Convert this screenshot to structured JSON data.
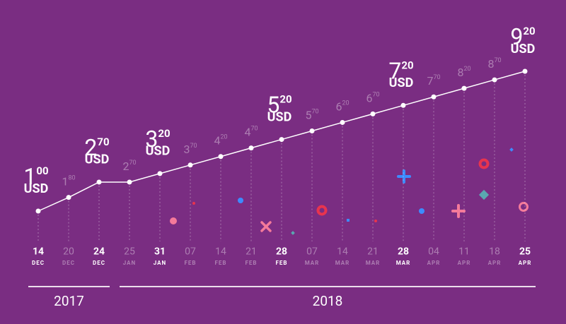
{
  "chart_data": {
    "type": "line",
    "x": [
      [
        "14",
        "DEC"
      ],
      [
        "20",
        "DEC"
      ],
      [
        "24",
        "DEC"
      ],
      [
        "25",
        "JAN"
      ],
      [
        "31",
        "JAN"
      ],
      [
        "07",
        "FEB"
      ],
      [
        "14",
        "FEB"
      ],
      [
        "21",
        "FEB"
      ],
      [
        "28",
        "FEB"
      ],
      [
        "07",
        "MAR"
      ],
      [
        "14",
        "MAR"
      ],
      [
        "21",
        "MAR"
      ],
      [
        "28",
        "MAR"
      ],
      [
        "04",
        "APR"
      ],
      [
        "11",
        "APR"
      ],
      [
        "18",
        "APR"
      ],
      [
        "25",
        "APR"
      ]
    ],
    "values": [
      1.0,
      1.8,
      2.7,
      2.7,
      3.2,
      3.7,
      4.2,
      4.7,
      5.2,
      5.7,
      6.2,
      6.7,
      7.2,
      7.7,
      8.2,
      8.7,
      9.2
    ],
    "value_labels": [
      [
        "1",
        "00"
      ],
      [
        "1",
        "80"
      ],
      [
        "2",
        "70"
      ],
      [
        "2",
        "70"
      ],
      [
        "3",
        "20"
      ],
      [
        "3",
        "70"
      ],
      [
        "4",
        "20"
      ],
      [
        "4",
        "70"
      ],
      [
        "5",
        "20"
      ],
      [
        "5",
        "70"
      ],
      [
        "6",
        "20"
      ],
      [
        "6",
        "70"
      ],
      [
        "7",
        "20"
      ],
      [
        "7",
        "70"
      ],
      [
        "8",
        "20"
      ],
      [
        "8",
        "70"
      ],
      [
        "9",
        "20"
      ]
    ],
    "emphasized": [
      true,
      false,
      true,
      false,
      true,
      false,
      false,
      false,
      true,
      false,
      false,
      false,
      true,
      false,
      false,
      false,
      true
    ],
    "currency": "USD",
    "color": "#ffffff",
    "currency_color": "#f26b8c",
    "year_groups": [
      {
        "label": "2017",
        "count": 3
      },
      {
        "label": "2018",
        "count": 14
      }
    ]
  }
}
